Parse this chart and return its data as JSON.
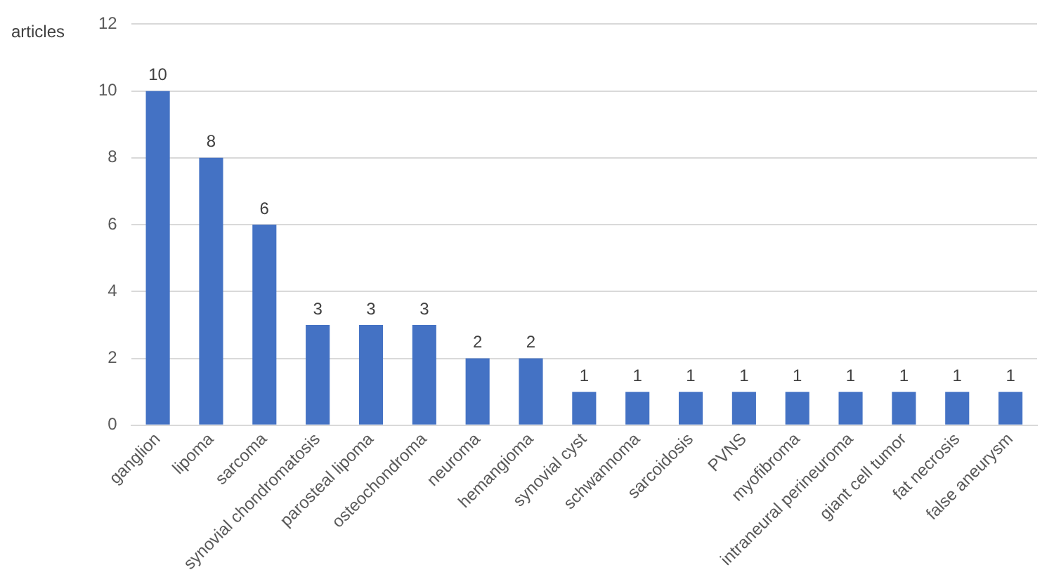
{
  "chart_data": {
    "type": "bar",
    "ylabel": "articles",
    "categories": [
      "ganglion",
      "lipoma",
      "sarcoma",
      "synovial chondromatosis",
      "parosteal lipoma",
      "osteochondroma",
      "neuroma",
      "hemangioma",
      "synovial cyst",
      "schwannoma",
      "sarcoidosis",
      "PVNS",
      "myofibroma",
      "intraneural perineuroma",
      "giant cell tumor",
      "fat necrosis",
      "false aneurysm"
    ],
    "values": [
      10,
      8,
      6,
      3,
      3,
      3,
      2,
      2,
      1,
      1,
      1,
      1,
      1,
      1,
      1,
      1,
      1
    ],
    "color": "#4472c4",
    "ylim": [
      0,
      12
    ],
    "yticks": [
      0,
      2,
      4,
      6,
      8,
      10,
      12
    ],
    "grid": "y",
    "data_labels": true,
    "legend": false
  }
}
